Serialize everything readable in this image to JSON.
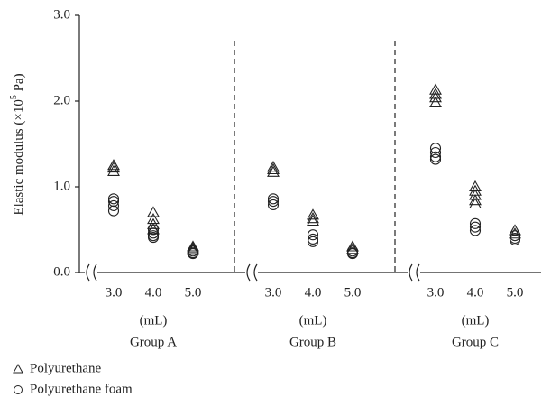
{
  "chart_data": {
    "type": "scatter",
    "y_label": {
      "text": "Elastic modulus (×10",
      "superscript": "5",
      "unit": " Pa)"
    },
    "ylim": [
      0,
      3
    ],
    "yticks": [
      {
        "value": 0,
        "label": "0.0"
      },
      {
        "value": 1,
        "label": "1.0"
      },
      {
        "value": 2,
        "label": "2.0"
      },
      {
        "value": 3,
        "label": "3.0"
      }
    ],
    "groups": [
      {
        "name": "Group A",
        "unit": "(mL)",
        "categories": [
          "3.0",
          "4.0",
          "5.0"
        ]
      },
      {
        "name": "Group B",
        "unit": "(mL)",
        "categories": [
          "3.0",
          "4.0",
          "5.0"
        ]
      },
      {
        "name": "Group C",
        "unit": "(mL)",
        "categories": [
          "3.0",
          "4.0",
          "5.0"
        ]
      }
    ],
    "series": [
      {
        "name": "Polyurethane",
        "marker": "triangle",
        "color": "#222",
        "values": [
          [
            [
              1.25,
              1.22,
              1.18
            ],
            [
              0.7,
              0.62,
              0.56,
              0.5
            ],
            [
              0.3,
              0.28,
              0.26
            ]
          ],
          [
            [
              1.23,
              1.2,
              1.17
            ],
            [
              0.67,
              0.63,
              0.6
            ],
            [
              0.3,
              0.27
            ]
          ],
          [
            [
              2.13,
              2.08,
              2.04,
              1.98
            ],
            [
              1.0,
              0.95,
              0.9,
              0.84,
              0.8
            ],
            [
              0.49,
              0.45
            ]
          ]
        ]
      },
      {
        "name": "Polyurethane foam",
        "marker": "circle",
        "color": "#222",
        "values": [
          [
            [
              0.86,
              0.83,
              0.78,
              0.72
            ],
            [
              0.5,
              0.46,
              0.43,
              0.41
            ],
            [
              0.25,
              0.23,
              0.22
            ]
          ],
          [
            [
              0.86,
              0.83,
              0.79
            ],
            [
              0.44,
              0.39,
              0.36
            ],
            [
              0.25,
              0.23,
              0.22
            ]
          ],
          [
            [
              1.45,
              1.4,
              1.35,
              1.32
            ],
            [
              0.57,
              0.53,
              0.49
            ],
            [
              0.43,
              0.4,
              0.38
            ]
          ]
        ]
      }
    ]
  }
}
